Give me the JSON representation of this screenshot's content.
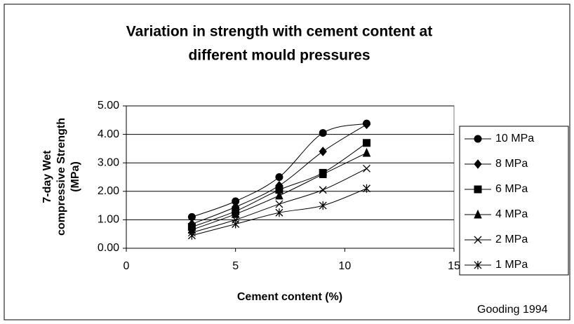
{
  "chart_data": {
    "type": "line",
    "title": [
      "Variation in strength with cement content at",
      "different mould pressures"
    ],
    "xlabel": "Cement content (%)",
    "ylabel": [
      "7-day Wet",
      "compressive Strength",
      "(MPa)"
    ],
    "annotation": "Gooding 1994",
    "x": [
      3,
      5,
      7,
      9,
      11
    ],
    "series": [
      {
        "name": "10 MPa",
        "marker": "circle",
        "color": "#000000",
        "values": [
          1.1,
          1.65,
          2.5,
          4.05,
          4.38
        ]
      },
      {
        "name": "8 MPa",
        "marker": "diamond",
        "color": "#000000",
        "values": [
          0.85,
          1.45,
          2.2,
          3.4,
          4.35
        ]
      },
      {
        "name": "6 MPa",
        "marker": "square",
        "color": "#000000",
        "values": [
          0.75,
          1.3,
          2.05,
          2.65,
          3.7
        ]
      },
      {
        "name": "4 MPa",
        "marker": "triangle",
        "color": "#000000",
        "values": [
          0.65,
          1.2,
          1.85,
          2.6,
          3.35
        ]
      },
      {
        "name": "2 MPa",
        "marker": "x",
        "color": "#000000",
        "values": [
          0.55,
          1.0,
          1.55,
          2.05,
          2.8
        ]
      },
      {
        "name": "1 MPa",
        "marker": "star",
        "color": "#000000",
        "values": [
          0.45,
          0.85,
          1.25,
          1.5,
          2.1
        ]
      }
    ],
    "xlim": [
      0,
      15
    ],
    "xticks": [
      0,
      5,
      10,
      15
    ],
    "ylim": [
      0,
      5
    ],
    "yticks": [
      {
        "value": 0,
        "label": "0.00"
      },
      {
        "value": 1,
        "label": "1.00"
      },
      {
        "value": 2,
        "label": "2.00"
      },
      {
        "value": 3,
        "label": "3.00"
      },
      {
        "value": 4,
        "label": "4.00"
      },
      {
        "value": 5,
        "label": "5.00"
      }
    ],
    "grid": true,
    "legend": "right"
  }
}
